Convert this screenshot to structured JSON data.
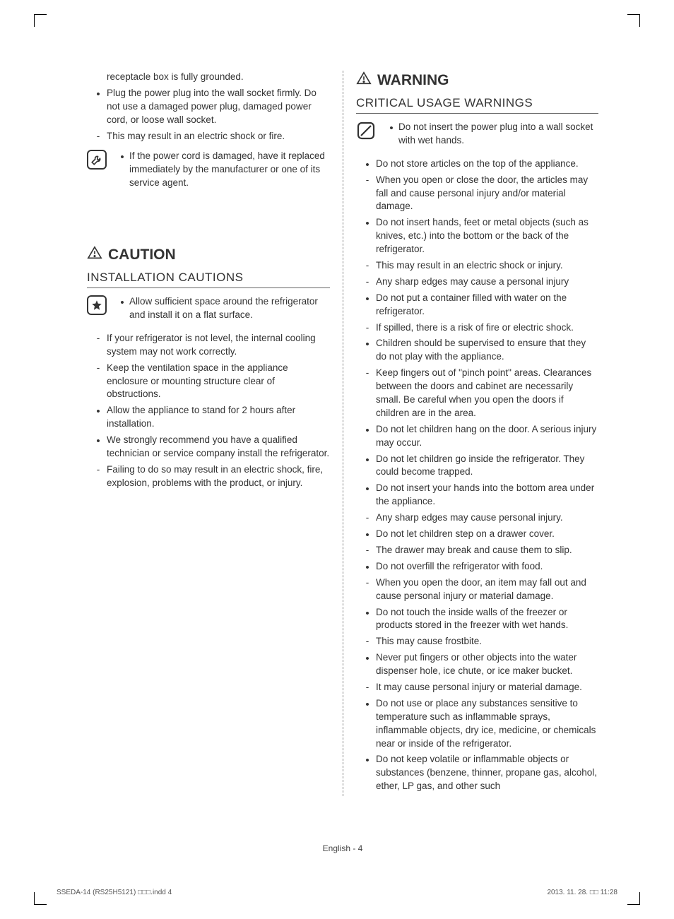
{
  "left": {
    "intro_items": [
      {
        "type": "plain",
        "text": "receptacle box is fully grounded."
      },
      {
        "type": "bullet",
        "text": "Plug the power plug into the wall socket firmly. Do not use a damaged power plug, damaged power cord, or loose wall socket."
      },
      {
        "type": "dash",
        "text": "This may result in an electric shock or fire."
      }
    ],
    "note_icon_items": [
      {
        "type": "bullet",
        "text": "If the power cord is damaged, have it replaced immediately by the manufacturer or one of its service agent."
      }
    ],
    "caution_title": "CAUTION",
    "caution_sub": "INSTALLATION CAUTIONS",
    "caution_icon_items": [
      {
        "type": "bullet",
        "text": "Allow sufficient space around the refrigerator and install it on a flat surface."
      }
    ],
    "caution_items": [
      {
        "type": "dash",
        "text": "If your refrigerator is not level, the internal cooling system may not work correctly."
      },
      {
        "type": "dash",
        "text": "Keep the ventilation space in the appliance enclosure or mounting structure clear of obstructions."
      },
      {
        "type": "bullet",
        "text": "Allow the appliance to stand for 2 hours after installation."
      },
      {
        "type": "bullet",
        "text": "We strongly recommend you have a qualified technician or service company install the refrigerator."
      },
      {
        "type": "dash",
        "text": "Failing to do so may result in an electric shock, fire,  explosion, problems with the product, or injury."
      }
    ]
  },
  "right": {
    "warning_title": "WARNING",
    "warning_sub": "CRITICAL USAGE WARNINGS",
    "warning_icon_items": [
      {
        "type": "bullet",
        "text": "Do not insert the power plug into a wall socket with wet hands."
      }
    ],
    "warning_items": [
      {
        "type": "bullet",
        "text": "Do not store articles on the top of the appliance."
      },
      {
        "type": "dash",
        "text": "When you open or close the door, the articles may fall and cause personal injury and/or material damage."
      },
      {
        "type": "bullet",
        "text": "Do not insert hands, feet or metal objects (such as knives, etc.) into the bottom or the back of the refrigerator."
      },
      {
        "type": "dash",
        "text": "This may result in an electric shock or injury."
      },
      {
        "type": "dash",
        "text": "Any sharp edges may cause a personal injury"
      },
      {
        "type": "bullet",
        "text": "Do not put a container filled with water on the refrigerator."
      },
      {
        "type": "dash",
        "text": "If spilled, there is a risk of fire or electric shock."
      },
      {
        "type": "bullet",
        "text": "Children should be supervised to ensure that they do not play with the appliance."
      },
      {
        "type": "dash",
        "text": "Keep fingers out of \"pinch point\" areas. Clearances between the doors and cabinet are necessarily small. Be careful when you open the doors if children are in the area."
      },
      {
        "type": "bullet",
        "text": "Do not let children hang on the door. A serious injury may occur."
      },
      {
        "type": "bullet",
        "text": "Do not let children go inside the refrigerator. They could become trapped."
      },
      {
        "type": "bullet",
        "text": "Do not insert your hands into the bottom area under the appliance."
      },
      {
        "type": "dash",
        "text": "Any sharp edges may cause personal injury."
      },
      {
        "type": "bullet",
        "text": "Do not let children step on a drawer cover."
      },
      {
        "type": "dash",
        "text": "The drawer may break and cause them to slip."
      },
      {
        "type": "bullet",
        "text": "Do not overfill the refrigerator with food."
      },
      {
        "type": "dash",
        "text": "When you open the door, an item may fall out and cause personal injury or material damage."
      },
      {
        "type": "bullet",
        "text": "Do not touch the inside walls of the freezer or products stored in the freezer with wet hands."
      },
      {
        "type": "dash",
        "text": "This may cause frostbite."
      },
      {
        "type": "bullet",
        "text": "Never put fingers or other objects into the water dispenser hole, ice chute, or ice maker bucket."
      },
      {
        "type": "dash",
        "text": "It may cause personal injury or material damage."
      },
      {
        "type": "bullet",
        "text": "Do not use or place any substances sensitive to temperature such as inflammable sprays, inflammable objects, dry ice, medicine, or chemicals near or inside of the refrigerator."
      },
      {
        "type": "bullet",
        "text": "Do not keep volatile or inflammable objects or substances (benzene, thinner, propane gas, alcohol, ether, LP gas, and other such"
      }
    ]
  },
  "footer": {
    "page_label": "English - 4",
    "left_meta": "SSEDA-14 (RS25H5121) □□□.indd   4",
    "right_meta": "2013. 11. 28.   □□ 11:28"
  }
}
